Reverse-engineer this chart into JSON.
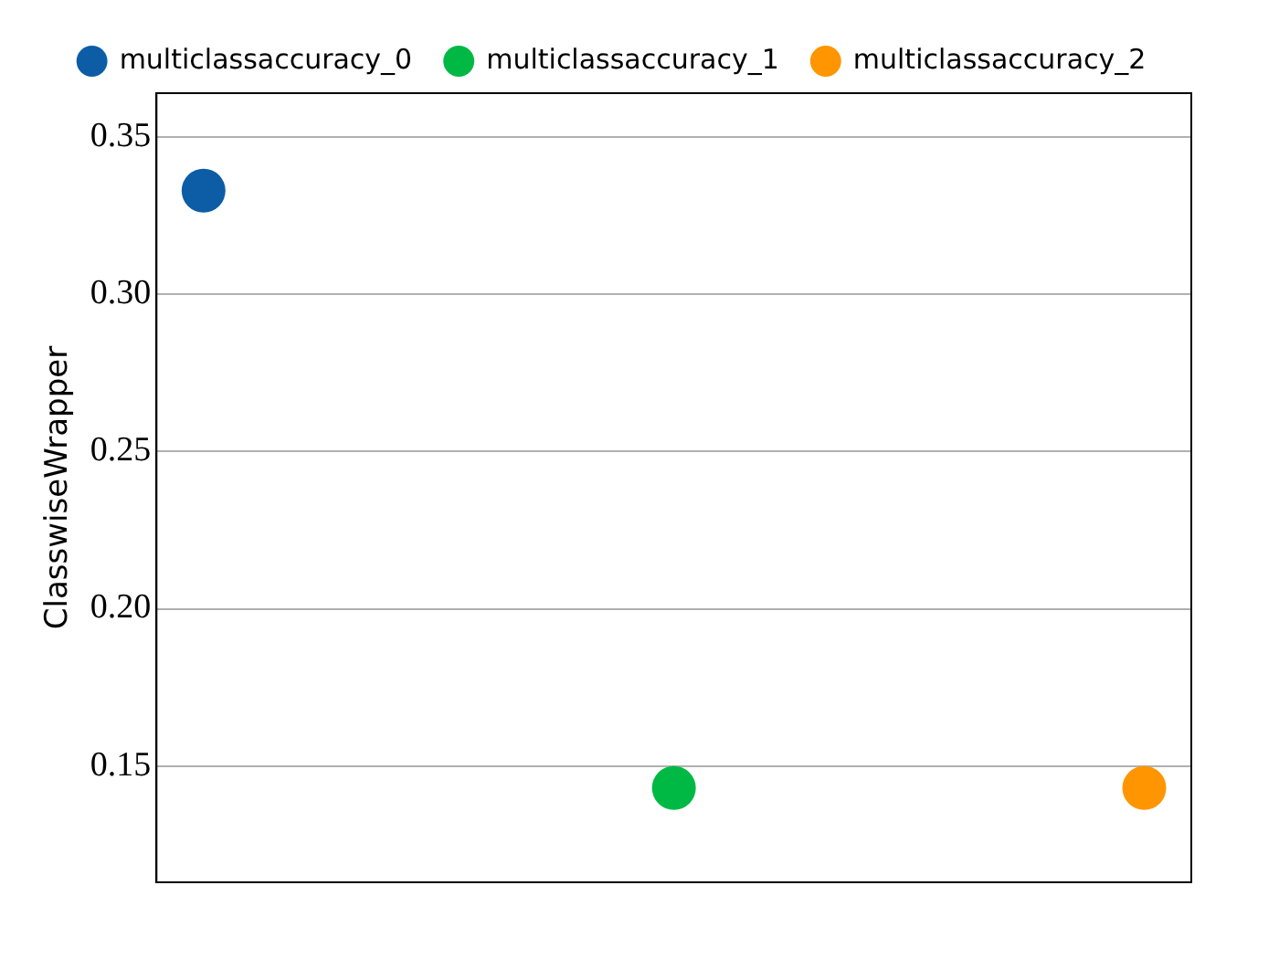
{
  "chart_data": {
    "type": "scatter",
    "ylabel": "ClasswiseWrapper",
    "categories": [
      null,
      null,
      null
    ],
    "series": [
      {
        "name": "multiclassaccuracy_0",
        "color": "#0c5da5",
        "values": [
          0.333,
          null,
          null
        ]
      },
      {
        "name": "multiclassaccuracy_1",
        "color": "#00b945",
        "values": [
          null,
          0.143,
          null
        ]
      },
      {
        "name": "multiclassaccuracy_2",
        "color": "#ff9500",
        "values": [
          null,
          null,
          0.143
        ]
      }
    ],
    "ylim": [
      0.113,
      0.364
    ],
    "yticks": [
      0.15,
      {
        "value": 0.2,
        "label": "0.20"
      },
      0.25,
      {
        "value": 0.3,
        "label": "0.30"
      },
      0.35
    ],
    "grid": "y",
    "legend": "top",
    "marker": "circle"
  }
}
